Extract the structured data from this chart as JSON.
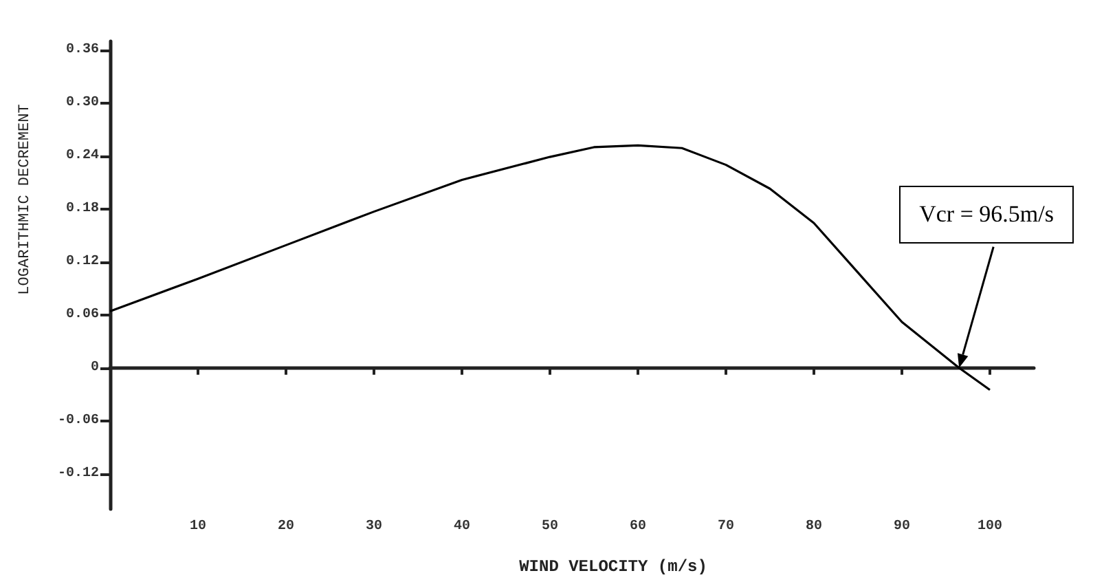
{
  "chart_data": {
    "type": "line",
    "xlabel": "WIND VELOCITY (m/s)",
    "ylabel": "LOGARITHMIC DECREMENT",
    "x": [
      0,
      10,
      20,
      30,
      40,
      50,
      55,
      60,
      65,
      70,
      75,
      80,
      85,
      90,
      96.5,
      100
    ],
    "series": [
      {
        "color": "#000000",
        "values": [
          0.064,
          0.101,
          0.139,
          0.177,
          0.213,
          0.239,
          0.25,
          0.252,
          0.249,
          0.23,
          0.203,
          0.164,
          0.108,
          0.052,
          0,
          -0.025
        ]
      }
    ],
    "xlim": [
      0,
      105
    ],
    "xticks": [
      10,
      20,
      30,
      40,
      50,
      60,
      70,
      80,
      90,
      100
    ],
    "ylim": [
      -0.16,
      0.37
    ],
    "yticks": [
      -0.12,
      -0.06,
      0,
      0.06,
      0.12,
      0.18,
      0.24,
      {
        "value": 0.3,
        "label": "0.30"
      },
      0.36
    ],
    "annotations": [
      "Vcr = 96.5m/s"
    ],
    "marker": "none",
    "line_style": "solid"
  }
}
